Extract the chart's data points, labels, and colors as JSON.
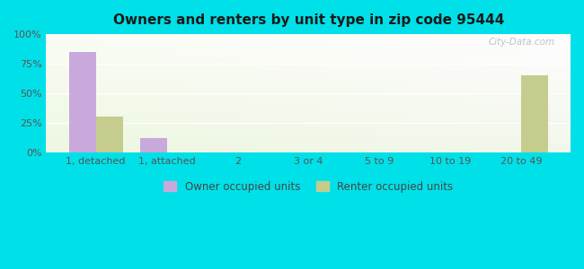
{
  "title": "Owners and renters by unit type in zip code 95444",
  "categories": [
    "1, detached",
    "1, attached",
    "2",
    "3 or 4",
    "5 to 9",
    "10 to 19",
    "20 to 49"
  ],
  "owner_values": [
    85,
    12,
    0,
    0,
    0,
    0,
    0
  ],
  "renter_values": [
    30,
    0,
    0,
    0,
    0,
    0,
    65
  ],
  "owner_color": "#c9a8dc",
  "renter_color": "#c5cc8e",
  "background_outer": "#00e0e8",
  "ylim": [
    0,
    100
  ],
  "yticks": [
    0,
    25,
    50,
    75,
    100
  ],
  "ytick_labels": [
    "0%",
    "25%",
    "50%",
    "75%",
    "100%"
  ],
  "legend_owner": "Owner occupied units",
  "legend_renter": "Renter occupied units",
  "bar_width": 0.38,
  "watermark": "City-Data.com"
}
